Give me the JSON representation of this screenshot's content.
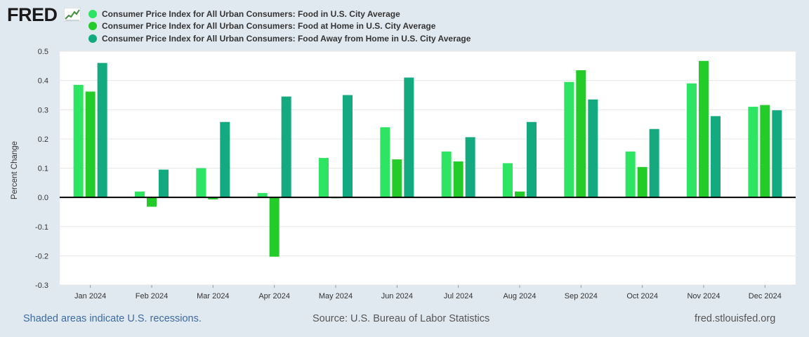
{
  "header": {
    "logo_text": "FRED",
    "logo_icon": "line-chart-icon"
  },
  "colors": {
    "background": "#e1e9f0",
    "plot_background": "#ffffff",
    "series_food": "#2ee563",
    "series_food_at_home": "#23cc29",
    "series_food_away": "#13aa80",
    "zero_line": "#000000",
    "grid": "#e6e6e6"
  },
  "chart_data": {
    "type": "bar",
    "title": "",
    "xlabel": "",
    "ylabel": "Percent Change",
    "ylim": [
      -0.3,
      0.5
    ],
    "yticks": [
      {
        "value": 0.5,
        "label": "0.5"
      },
      {
        "value": 0.4,
        "label": "0.4"
      },
      {
        "value": 0.3,
        "label": "0.3"
      },
      {
        "value": 0.2,
        "label": "0.2"
      },
      {
        "value": 0.1,
        "label": "0.1"
      },
      {
        "value": 0.0,
        "label": "0.0"
      },
      {
        "value": -0.1,
        "label": "-0.1"
      },
      {
        "value": -0.2,
        "label": "-0.2"
      },
      {
        "value": -0.3,
        "label": "-0.3"
      }
    ],
    "categories": [
      "Jan 2024",
      "Feb 2024",
      "Mar 2024",
      "Apr 2024",
      "May 2024",
      "Jun 2024",
      "Jul 2024",
      "Aug 2024",
      "Sep 2024",
      "Oct 2024",
      "Nov 2024",
      "Dec 2024"
    ],
    "series": [
      {
        "name": "Consumer Price Index for All Urban Consumers: Food in U.S. City Average",
        "color": "#2ee563",
        "values": [
          0.385,
          0.02,
          0.1,
          0.015,
          0.135,
          0.24,
          0.157,
          0.117,
          0.395,
          0.157,
          0.39,
          0.31
        ]
      },
      {
        "name": "Consumer Price Index for All Urban Consumers: Food at Home in U.S. City Average",
        "color": "#23cc29",
        "values": [
          0.362,
          -0.032,
          -0.007,
          -0.203,
          -0.003,
          0.13,
          0.123,
          0.02,
          0.435,
          0.104,
          0.467,
          0.316
        ]
      },
      {
        "name": "Consumer Price Index for All Urban Consumers: Food Away from Home in U.S. City Average",
        "color": "#13aa80",
        "values": [
          0.46,
          0.095,
          0.258,
          0.345,
          0.35,
          0.41,
          0.206,
          0.258,
          0.335,
          0.234,
          0.278,
          0.298
        ]
      }
    ],
    "legend_position": "top-left",
    "grid": true
  },
  "footer": {
    "recession_note": "Shaded areas indicate U.S. recessions.",
    "source": "Source: U.S. Bureau of Labor Statistics",
    "site": "fred.stlouisfed.org"
  }
}
